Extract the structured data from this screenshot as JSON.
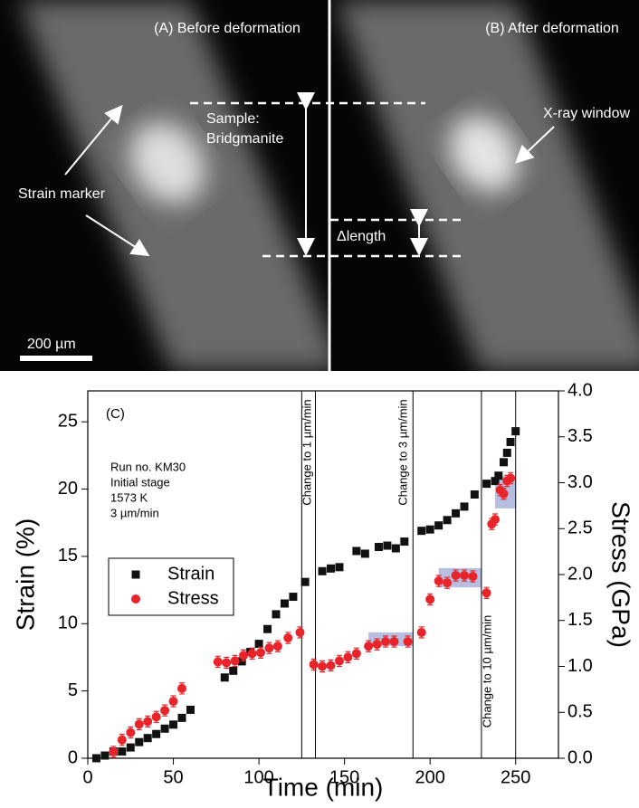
{
  "figure": {
    "panel_a_title": "(A) Before deformation",
    "panel_b_title": "(B) After deformation",
    "strain_marker": "Strain marker",
    "sample_line1": "Sample:",
    "sample_line2": "Bridgmanite",
    "xray_window": "X-ray window",
    "delta_length": "Δlength",
    "scale_bar": "200 µm"
  },
  "chart_data": {
    "type": "scatter",
    "panel_label": "(C)",
    "notes": [
      "Run no. KM30",
      "Initial stage",
      "1573 K",
      "3 µm/min"
    ],
    "x_label": "Time (min)",
    "y_label": "Strain (%)",
    "y2_label": "Stress (GPa)",
    "xlim": [
      0,
      275
    ],
    "xticks": [
      0,
      50,
      100,
      150,
      200,
      250
    ],
    "ylim": [
      0,
      27.3
    ],
    "yticks": [
      0,
      5,
      10,
      15,
      20,
      25
    ],
    "y2lim": [
      0,
      4
    ],
    "y2ticks": [
      {
        "value": 0,
        "label": "0.0"
      },
      0.5,
      {
        "value": 1,
        "label": "1.0"
      },
      1.5,
      {
        "value": 2,
        "label": "2.0"
      },
      2.5,
      {
        "value": 3,
        "label": "3.0"
      },
      3.5,
      {
        "value": 4,
        "label": "4.0"
      }
    ],
    "vlines": [
      125,
      133,
      190,
      230,
      250
    ],
    "annotations": [
      "Change to 1 µm/min",
      "Change to 3 µm/min",
      "Change to 10 µm/min"
    ],
    "highlights": [
      {
        "x": [
          164,
          190
        ],
        "y": [
          1.22,
          1.37
        ]
      },
      {
        "x": [
          205,
          230
        ],
        "y": [
          1.86,
          2.07
        ]
      },
      {
        "x": [
          238,
          250
        ],
        "y": [
          2.72,
          3.07
        ]
      }
    ],
    "highlight_color": "#a9b3dc",
    "series": [
      {
        "name": "Strain",
        "color": "#111111",
        "marker": "square",
        "x": [
          5,
          10,
          15,
          20,
          25,
          30,
          35,
          40,
          45,
          50,
          55,
          60,
          80,
          85,
          90,
          95,
          100,
          105,
          110,
          115,
          120,
          127,
          137,
          142,
          147,
          157,
          162,
          170,
          175,
          180,
          185,
          195,
          200,
          205,
          210,
          215,
          220,
          226,
          233,
          238,
          240,
          243,
          245,
          247,
          250
        ],
        "values": [
          0,
          0.2,
          0.5,
          0.5,
          0.8,
          1.2,
          1.5,
          1.8,
          2.2,
          2.5,
          3,
          3.6,
          6,
          6.5,
          7.2,
          7.9,
          8.5,
          9.6,
          10.7,
          11.5,
          12,
          13.1,
          13.9,
          14.1,
          14.2,
          15.4,
          15.2,
          15.7,
          15.8,
          15.6,
          16.1,
          16.9,
          17,
          17.3,
          17.7,
          18.2,
          18.7,
          19.6,
          20.4,
          20.6,
          21,
          22,
          22.7,
          23.5,
          24.3
        ]
      },
      {
        "name": "Stress",
        "color": "#e8242a",
        "marker": "circle",
        "axis": "y2",
        "error": 0.06,
        "x": [
          15,
          20,
          25,
          30,
          35,
          40,
          45,
          50,
          55,
          76,
          81,
          86,
          91,
          96,
          101,
          106,
          111,
          117,
          124,
          132,
          137,
          142,
          147,
          152,
          157,
          164,
          169,
          174,
          179,
          187,
          195,
          200,
          205,
          210,
          215,
          220,
          225,
          233,
          236,
          238,
          241,
          243,
          245,
          247
        ],
        "values": [
          0.07,
          0.2,
          0.28,
          0.37,
          0.4,
          0.45,
          0.52,
          0.62,
          0.76,
          1.05,
          1.04,
          1.06,
          1.12,
          1.14,
          1.15,
          1.2,
          1.22,
          1.31,
          1.37,
          1.02,
          1,
          1.01,
          1.06,
          1.1,
          1.14,
          1.22,
          1.24,
          1.27,
          1.27,
          1.27,
          1.37,
          1.73,
          1.93,
          1.91,
          1.99,
          1.99,
          1.98,
          1.8,
          2.55,
          2.6,
          2.92,
          2.88,
          3.02,
          3.05
        ]
      }
    ]
  }
}
